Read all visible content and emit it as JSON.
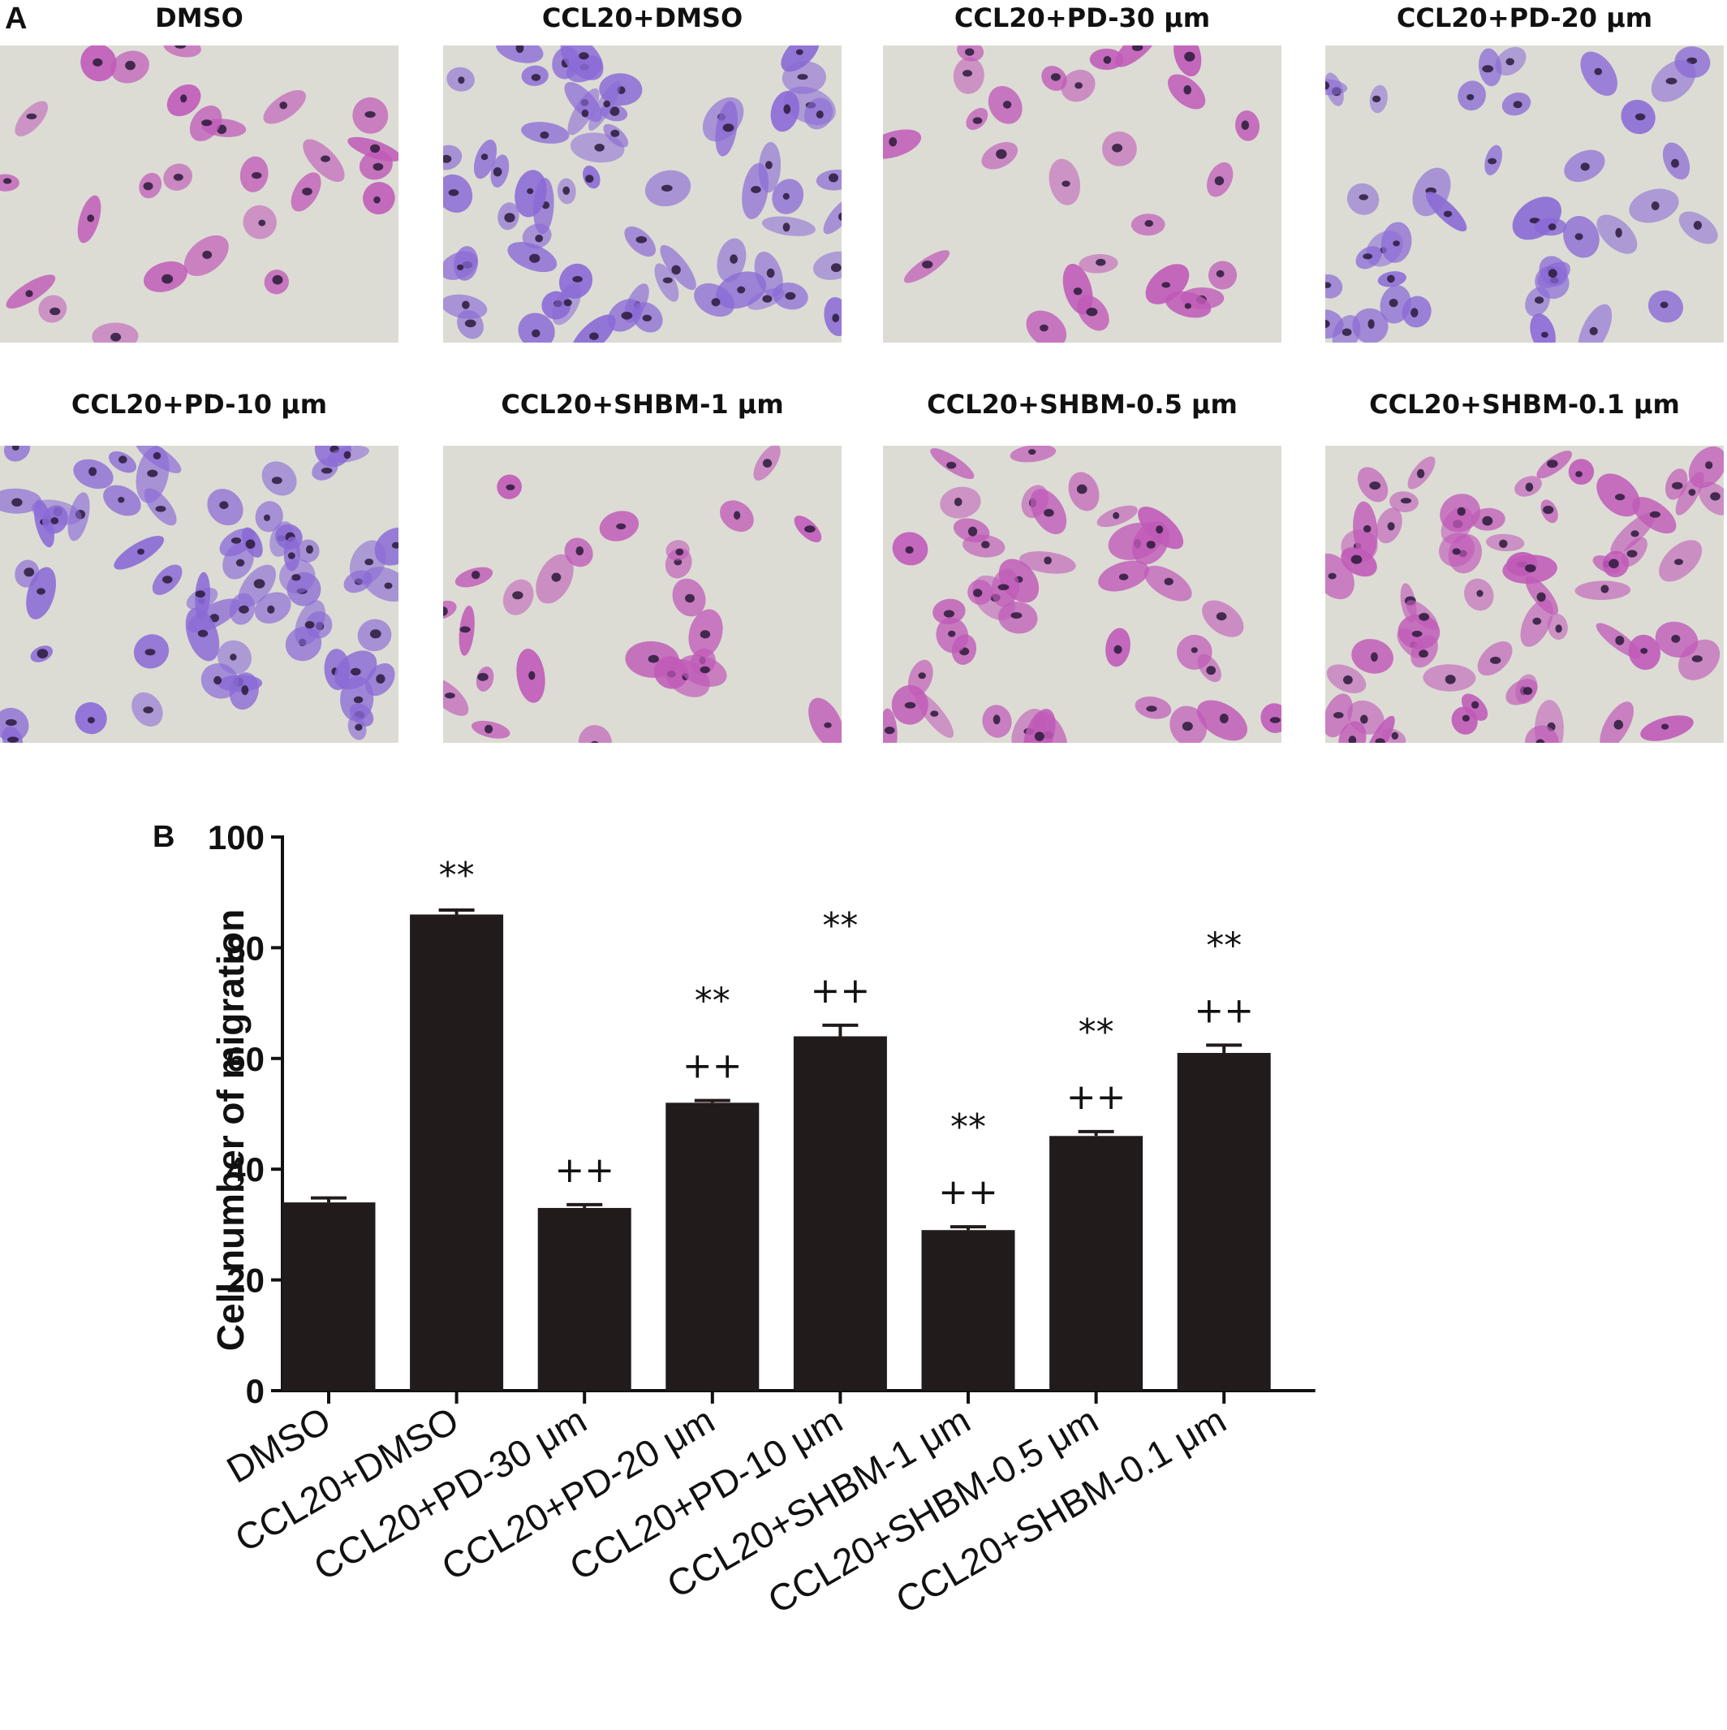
{
  "panel_a": {
    "letter": "A",
    "images": [
      {
        "label": "DMSO",
        "density": "low",
        "tone": "magenta"
      },
      {
        "label": "CCL20+DMSO",
        "density": "high",
        "tone": "violet"
      },
      {
        "label": "CCL20+PD-30 μm",
        "density": "low",
        "tone": "magenta"
      },
      {
        "label": "CCL20+PD-20 μm",
        "density": "medium",
        "tone": "violet"
      },
      {
        "label": "CCL20+PD-10 μm",
        "density": "high",
        "tone": "violet"
      },
      {
        "label": "CCL20+SHBM-1 μm",
        "density": "low",
        "tone": "magenta"
      },
      {
        "label": "CCL20+SHBM-0.5 μm",
        "density": "medium",
        "tone": "magenta"
      },
      {
        "label": "CCL20+SHBM-0.1 μm",
        "density": "high",
        "tone": "magenta"
      }
    ]
  },
  "panel_b": {
    "letter": "B"
  },
  "colors": {
    "bar_fill": "#221b1b",
    "axis": "#111111",
    "slide_bg": "#dcdcd4",
    "cell_magenta": "#c05ab8",
    "cell_violet": "#8a6ad6",
    "nucleus": "#2a1a3a"
  },
  "chart_data": {
    "type": "bar",
    "categories": [
      "DMSO",
      "CCL20+DMSO",
      "CCL20+PD-30 μm",
      "CCL20+PD-20 μm",
      "CCL20+PD-10 μm",
      "CCL20+SHBM-1 μm",
      "CCL20+SHBM-0.5 μm",
      "CCL20+SHBM-0.1 μm"
    ],
    "values": [
      34,
      86,
      33,
      52,
      64,
      29,
      46,
      61
    ],
    "errors": [
      0.8,
      0.8,
      0.6,
      0.4,
      2.0,
      0.6,
      0.8,
      1.4
    ],
    "annotations": [
      [],
      [
        "**"
      ],
      [
        "++"
      ],
      [
        "++",
        "**"
      ],
      [
        "++",
        "**"
      ],
      [
        "++",
        "**"
      ],
      [
        "++",
        "**"
      ],
      [
        "++",
        "**"
      ]
    ],
    "ylabel": "Cell number of migration",
    "xlabel": "",
    "ylim": [
      0,
      100
    ],
    "yticks": [
      0,
      20,
      40,
      60,
      80,
      100
    ]
  }
}
